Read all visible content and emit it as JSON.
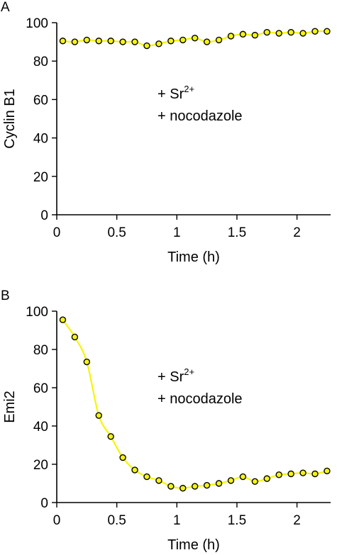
{
  "chart_data": [
    {
      "panel_label": "A",
      "type": "line",
      "xlabel": "Time (h)",
      "ylabel": "Cyclin B1",
      "xlim": [
        0,
        2.28
      ],
      "ylim": [
        0,
        100
      ],
      "xticks": [
        0,
        0.5,
        1,
        1.5,
        2
      ],
      "xtick_labels": [
        "0",
        "0.5",
        "1",
        "1.5",
        "2"
      ],
      "yticks": [
        0,
        20,
        40,
        60,
        80,
        100
      ],
      "ytick_labels": [
        "0",
        "20",
        "40",
        "60",
        "80",
        "100"
      ],
      "annotation_lines": [
        {
          "prefix": "+ Sr",
          "sup": "2+"
        },
        {
          "prefix": "+ nocodazole",
          "sup": ""
        }
      ],
      "line_color": "#f5f50a",
      "marker_fill": "#f5f50a",
      "series": [
        {
          "x": [
            0.05,
            0.15,
            0.25,
            0.35,
            0.45,
            0.55,
            0.65,
            0.75,
            0.85,
            0.95,
            1.05,
            1.15,
            1.25,
            1.35,
            1.45,
            1.55,
            1.65,
            1.75,
            1.85,
            1.95,
            2.05,
            2.15,
            2.25
          ],
          "y": [
            90.5,
            90,
            91,
            90.5,
            90.5,
            90,
            90,
            88,
            89,
            90.5,
            91,
            92,
            90,
            91,
            93,
            94,
            93.5,
            95,
            94.5,
            95,
            94.5,
            95.5,
            95.5
          ]
        }
      ]
    },
    {
      "panel_label": "B",
      "type": "line",
      "xlabel": "Time (h)",
      "ylabel": "Emi2",
      "xlim": [
        0,
        2.28
      ],
      "ylim": [
        0,
        100
      ],
      "xticks": [
        0,
        0.5,
        1,
        1.5,
        2
      ],
      "xtick_labels": [
        "0",
        "0.5",
        "1",
        "1.5",
        "2"
      ],
      "yticks": [
        0,
        20,
        40,
        60,
        80,
        100
      ],
      "ytick_labels": [
        "0",
        "20",
        "40",
        "60",
        "80",
        "100"
      ],
      "annotation_lines": [
        {
          "prefix": "+ Sr",
          "sup": "2+"
        },
        {
          "prefix": "+ nocodazole",
          "sup": ""
        }
      ],
      "line_color": "#f5f50a",
      "marker_fill": "#f5f50a",
      "series": [
        {
          "x": [
            0.05,
            0.15,
            0.25,
            0.35,
            0.45,
            0.55,
            0.65,
            0.75,
            0.85,
            0.95,
            1.05,
            1.15,
            1.25,
            1.35,
            1.45,
            1.55,
            1.65,
            1.75,
            1.85,
            1.95,
            2.05,
            2.15,
            2.25
          ],
          "y": [
            95.5,
            86.5,
            73.5,
            45.5,
            34.5,
            23.5,
            17,
            13.5,
            11.5,
            8.5,
            7.5,
            8.5,
            9,
            10,
            11.5,
            13.5,
            11,
            12.5,
            14.5,
            15,
            15.5,
            15,
            16.5
          ]
        }
      ]
    }
  ]
}
